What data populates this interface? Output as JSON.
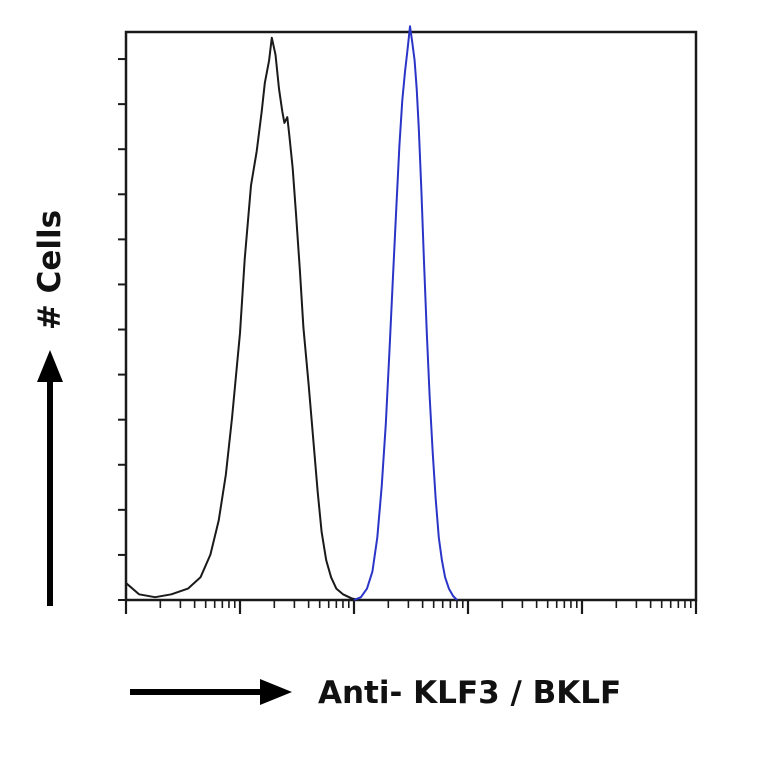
{
  "chart_data": {
    "type": "line",
    "title": "",
    "xlabel": "Anti- KLF3 / BKLF",
    "ylabel": "# Cells",
    "x_scale": "log",
    "xlim": [
      1,
      100000
    ],
    "ylim": [
      0,
      100
    ],
    "grid": false,
    "legend": "none",
    "series": [
      {
        "color": "#1a1a1a",
        "points": [
          [
            1.0,
            3
          ],
          [
            1.3,
            1
          ],
          [
            1.8,
            0.5
          ],
          [
            2.5,
            1
          ],
          [
            3.5,
            2
          ],
          [
            4.5,
            4
          ],
          [
            5.5,
            8
          ],
          [
            6.5,
            14
          ],
          [
            7.5,
            22
          ],
          [
            8.5,
            32
          ],
          [
            10,
            47
          ],
          [
            11,
            60
          ],
          [
            12.5,
            73
          ],
          [
            14,
            79
          ],
          [
            15.5,
            86
          ],
          [
            16.5,
            91
          ],
          [
            18,
            95
          ],
          [
            19,
            99
          ],
          [
            20.5,
            96
          ],
          [
            22,
            90
          ],
          [
            23.5,
            86
          ],
          [
            24.5,
            84
          ],
          [
            26,
            85
          ],
          [
            27,
            82
          ],
          [
            29,
            76
          ],
          [
            31,
            68
          ],
          [
            33.5,
            58
          ],
          [
            36,
            48
          ],
          [
            40,
            38
          ],
          [
            44,
            28
          ],
          [
            48,
            19
          ],
          [
            52,
            12
          ],
          [
            57,
            7
          ],
          [
            63,
            4
          ],
          [
            70,
            2
          ],
          [
            80,
            1
          ],
          [
            95,
            0.3
          ],
          [
            110,
            0
          ]
        ]
      },
      {
        "color": "#2a35c8",
        "points": [
          [
            100,
            0
          ],
          [
            115,
            0.5
          ],
          [
            130,
            2
          ],
          [
            145,
            5
          ],
          [
            160,
            11
          ],
          [
            175,
            20
          ],
          [
            190,
            31
          ],
          [
            205,
            44
          ],
          [
            220,
            57
          ],
          [
            235,
            69
          ],
          [
            250,
            80
          ],
          [
            265,
            88
          ],
          [
            280,
            93
          ],
          [
            295,
            97
          ],
          [
            310,
            101
          ],
          [
            325,
            98
          ],
          [
            340,
            95
          ],
          [
            355,
            90
          ],
          [
            370,
            83
          ],
          [
            390,
            72
          ],
          [
            410,
            60
          ],
          [
            435,
            47
          ],
          [
            460,
            36
          ],
          [
            490,
            26
          ],
          [
            520,
            18
          ],
          [
            555,
            11
          ],
          [
            590,
            7
          ],
          [
            630,
            4
          ],
          [
            680,
            2
          ],
          [
            740,
            0.7
          ],
          [
            800,
            0
          ]
        ]
      }
    ]
  }
}
